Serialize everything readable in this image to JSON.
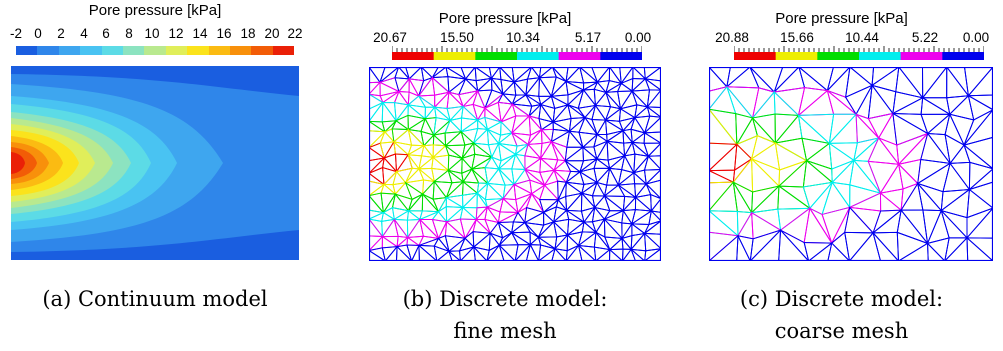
{
  "panels": [
    {
      "legend_title": "Pore pressure [kPa]",
      "tick_labels": [
        "-2",
        "0",
        "2",
        "4",
        "6",
        "8",
        "10",
        "12",
        "14",
        "16",
        "18",
        "20",
        "22"
      ],
      "caption": "(a) Continuum model"
    },
    {
      "legend_title": "Pore pressure [kPa]",
      "tick_labels": [
        "20.67",
        "15.50",
        "10.34",
        "5.17",
        "0.00"
      ],
      "caption_line1": "(b) Discrete model:",
      "caption_line2": "fine mesh"
    },
    {
      "legend_title": "Pore pressure [kPa]",
      "tick_labels": [
        "20.88",
        "15.66",
        "10.44",
        "5.22",
        "0.00"
      ],
      "caption_line1": "(c) Discrete model:",
      "caption_line2": "coarse mesh"
    }
  ],
  "colors": {
    "continuum_scale": [
      "#1a5ee0",
      "#2f86ea",
      "#3ea6ef",
      "#49c3f2",
      "#5cdbe6",
      "#8ce3c0",
      "#b9e98f",
      "#e0ee5a",
      "#fbe31c",
      "#fbbb12",
      "#f8900b",
      "#f25c07",
      "#ea2007"
    ],
    "discrete_scale": [
      "#ee0000",
      "#eeee00",
      "#00dd00",
      "#00eeee",
      "#ee00ee",
      "#0000ee"
    ],
    "mesh_frame": "#0000ee"
  }
}
